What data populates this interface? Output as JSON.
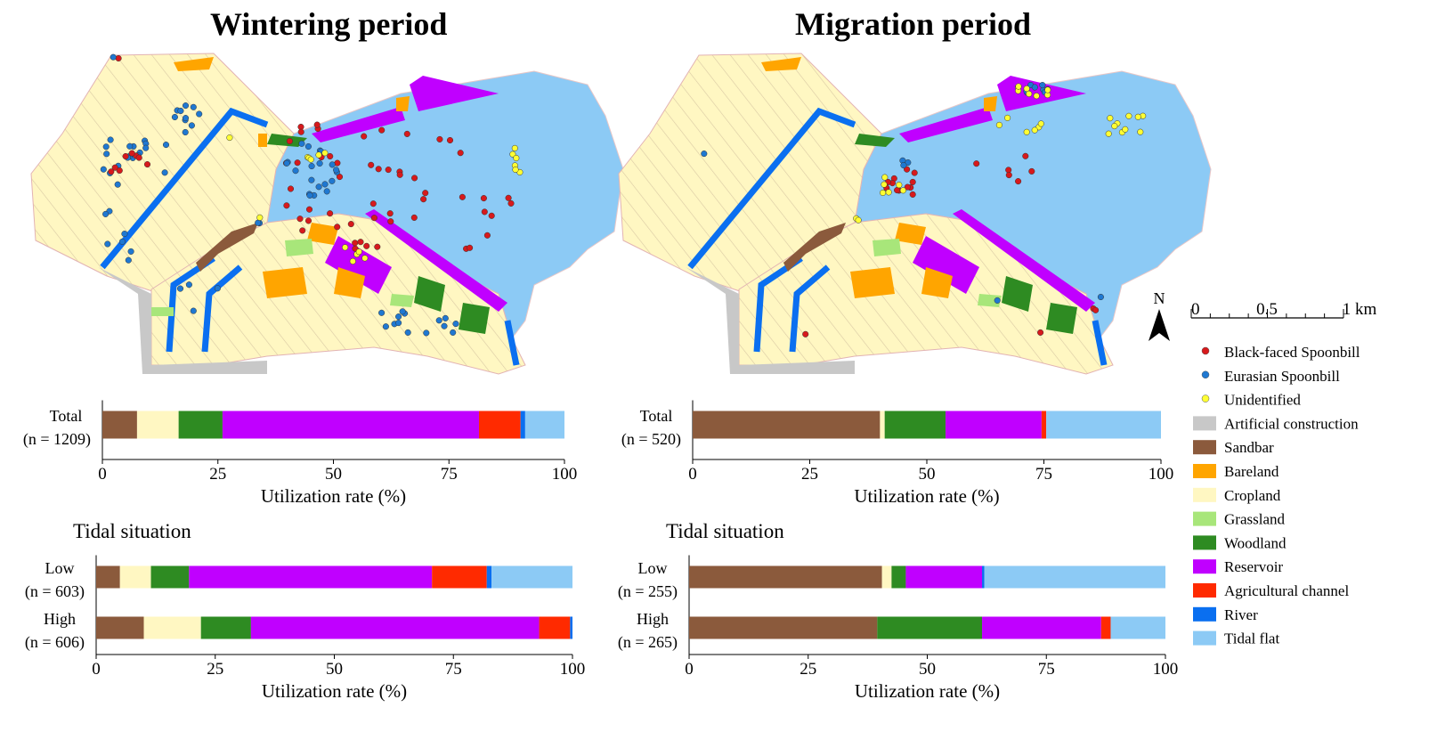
{
  "panels": [
    {
      "title": "Wintering period"
    },
    {
      "title": "Migration period"
    }
  ],
  "scale_bar": {
    "north": "N",
    "ticks": [
      "0",
      "0.5",
      "1 km"
    ]
  },
  "legend": {
    "points": [
      {
        "label": "Black-faced Spoonbill",
        "color": "#d7191c"
      },
      {
        "label": "Eurasian Spoonbill",
        "color": "#1f78d1"
      },
      {
        "label": "Unidentified",
        "color": "#ffff33"
      }
    ],
    "areas": [
      {
        "label": "Artificial construction",
        "color": "#c8c8c8"
      },
      {
        "label": "Sandbar",
        "color": "#8b5a3c"
      },
      {
        "label": "Bareland",
        "color": "#ffa500"
      },
      {
        "label": "Cropland",
        "color": "#fff7c2"
      },
      {
        "label": "Grassland",
        "color": "#a8e67a"
      },
      {
        "label": "Woodland",
        "color": "#2e8b22"
      },
      {
        "label": "Reservoir",
        "color": "#c000ff"
      },
      {
        "label": "Agricultural channel",
        "color": "#ff2a00"
      },
      {
        "label": "River",
        "color": "#0a6ff0"
      },
      {
        "label": "Tidal flat",
        "color": "#8ccaf5"
      }
    ]
  },
  "chart_data": [
    {
      "type": "bar",
      "orientation": "horizontal-stacked",
      "panel": "Wintering period",
      "xlabel": "Utilization rate (%)",
      "xlim": [
        0,
        100
      ],
      "xticks": [
        "0",
        "25",
        "50",
        "75",
        "100"
      ],
      "section_title": "",
      "categories": [
        {
          "label": "Total",
          "n": "(n = 1209)"
        }
      ],
      "series": [
        {
          "name": "Sandbar",
          "values": [
            7.5
          ]
        },
        {
          "name": "Cropland",
          "values": [
            9
          ]
        },
        {
          "name": "Woodland",
          "values": [
            9.5
          ]
        },
        {
          "name": "Reservoir",
          "values": [
            55.5
          ]
        },
        {
          "name": "Agricultural channel",
          "values": [
            9
          ]
        },
        {
          "name": "River",
          "values": [
            1
          ]
        },
        {
          "name": "Tidal flat",
          "values": [
            8.5
          ]
        }
      ]
    },
    {
      "type": "bar",
      "orientation": "horizontal-stacked",
      "panel": "Migration period",
      "xlabel": "Utilization rate (%)",
      "xlim": [
        0,
        100
      ],
      "xticks": [
        "0",
        "25",
        "50",
        "75",
        "100"
      ],
      "section_title": "",
      "categories": [
        {
          "label": "Total",
          "n": "(n = 520)"
        }
      ],
      "series": [
        {
          "name": "Sandbar",
          "values": [
            40
          ]
        },
        {
          "name": "Cropland",
          "values": [
            1
          ]
        },
        {
          "name": "Woodland",
          "values": [
            13
          ]
        },
        {
          "name": "Reservoir",
          "values": [
            20.5
          ]
        },
        {
          "name": "Agricultural channel",
          "values": [
            1
          ]
        },
        {
          "name": "Tidal flat",
          "values": [
            24.5
          ]
        }
      ]
    },
    {
      "type": "bar",
      "orientation": "horizontal-stacked",
      "panel": "Wintering period",
      "xlabel": "Utilization rate (%)",
      "xlim": [
        0,
        100
      ],
      "xticks": [
        "0",
        "25",
        "50",
        "75",
        "100"
      ],
      "section_title": "Tidal situation",
      "categories": [
        {
          "label": "Low",
          "n": "(n = 603)"
        },
        {
          "label": "High",
          "n": "(n = 606)"
        }
      ],
      "series": [
        {
          "name": "Sandbar",
          "values": [
            5,
            10
          ]
        },
        {
          "name": "Cropland",
          "values": [
            6.5,
            12
          ]
        },
        {
          "name": "Woodland",
          "values": [
            8,
            10.5
          ]
        },
        {
          "name": "Reservoir",
          "values": [
            51,
            60.5
          ]
        },
        {
          "name": "Agricultural channel",
          "values": [
            11.5,
            6.5
          ]
        },
        {
          "name": "River",
          "values": [
            1,
            0.5
          ]
        },
        {
          "name": "Tidal flat",
          "values": [
            17,
            0
          ]
        }
      ]
    },
    {
      "type": "bar",
      "orientation": "horizontal-stacked",
      "panel": "Migration period",
      "xlabel": "Utilization rate (%)",
      "xlim": [
        0,
        100
      ],
      "xticks": [
        "0",
        "25",
        "50",
        "75",
        "100"
      ],
      "section_title": "Tidal situation",
      "categories": [
        {
          "label": "Low",
          "n": "(n = 255)"
        },
        {
          "label": "High",
          "n": "(n = 265)"
        }
      ],
      "series": [
        {
          "name": "Sandbar",
          "values": [
            40.5,
            39.5
          ]
        },
        {
          "name": "Cropland",
          "values": [
            2,
            0
          ]
        },
        {
          "name": "Woodland",
          "values": [
            3,
            22
          ]
        },
        {
          "name": "Reservoir",
          "values": [
            16,
            25
          ]
        },
        {
          "name": "Agricultural channel",
          "values": [
            0,
            2
          ]
        },
        {
          "name": "River",
          "values": [
            0.5,
            0
          ]
        },
        {
          "name": "Tidal flat",
          "values": [
            38,
            11.5
          ]
        }
      ]
    }
  ]
}
